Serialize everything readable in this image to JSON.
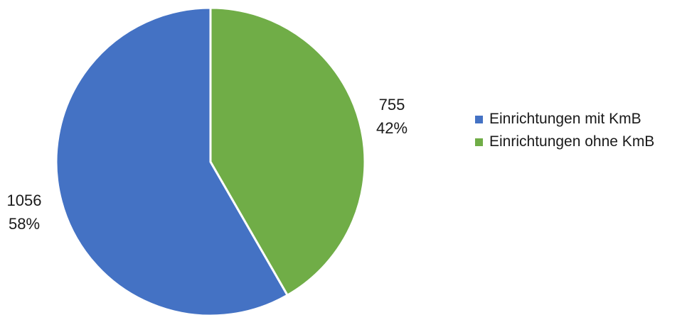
{
  "chart_data": {
    "type": "pie",
    "title": "",
    "legend_position": "right",
    "slice_border_color": "#ffffff",
    "series": [
      {
        "values": [
          {
            "category": "Einrichtungen mit KmB",
            "value": 1056,
            "value_label": "1056",
            "percent_label": "58%",
            "color": "#4472C4"
          },
          {
            "category": "Einrichtungen ohne KmB",
            "value": 755,
            "value_label": "755",
            "percent_label": "42%",
            "color": "#70AD47"
          }
        ]
      }
    ]
  },
  "legend": {
    "items": [
      {
        "label": "Einrichtungen mit KmB",
        "color": "#4472C4"
      },
      {
        "label": "Einrichtungen ohne KmB",
        "color": "#70AD47"
      }
    ]
  }
}
